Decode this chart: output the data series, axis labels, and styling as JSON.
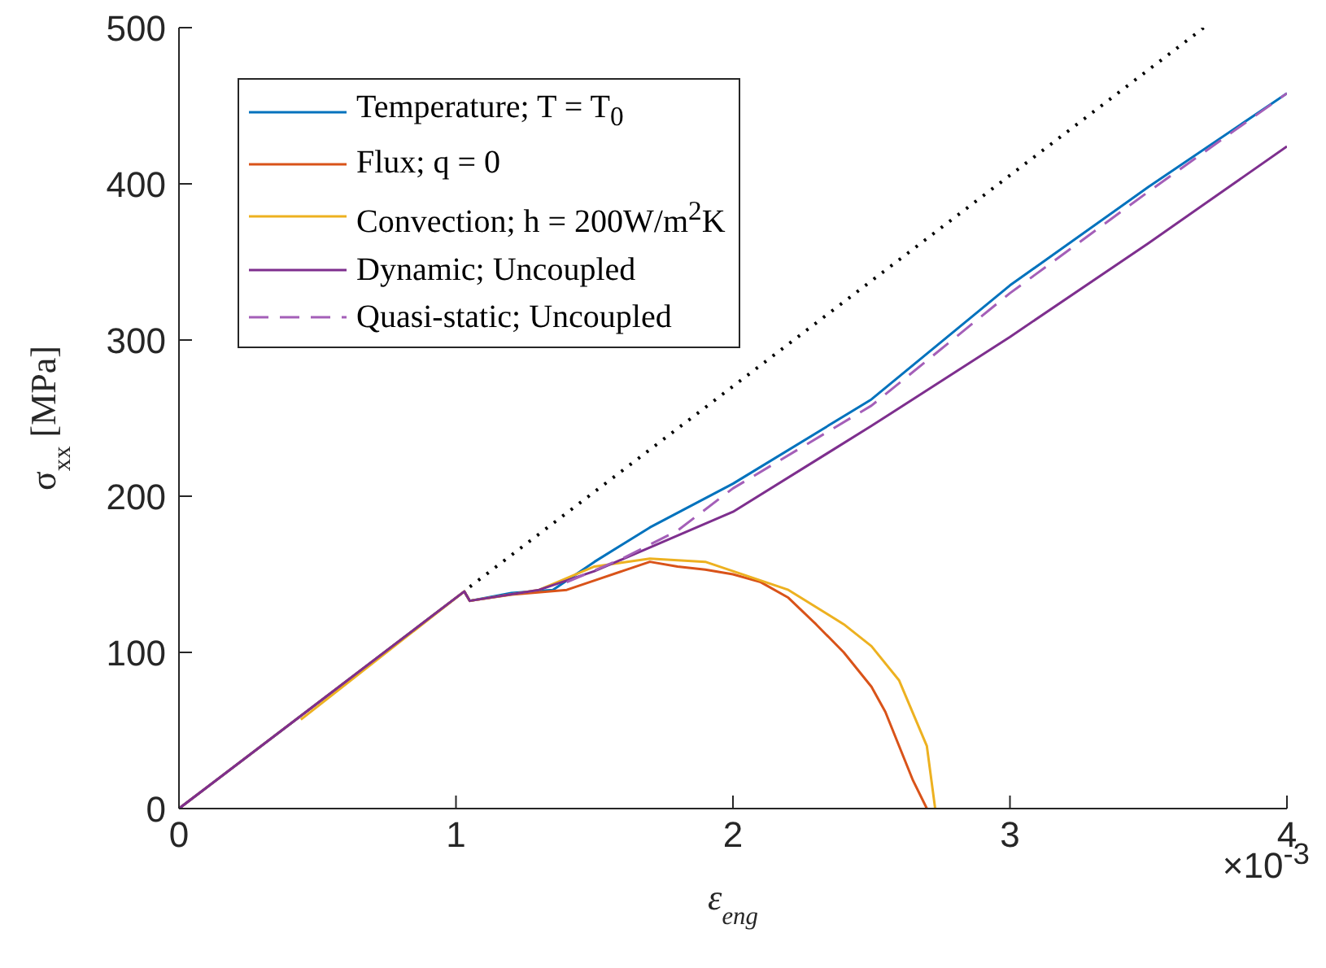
{
  "chart_data": {
    "type": "line",
    "xlabel": "ε$_{eng}$",
    "ylabel": "σ$_{xx}$ [MPa]",
    "annotations": [
      "×10$^{-3}$"
    ],
    "xlim": [
      0,
      4
    ],
    "xticks": [
      0,
      1,
      2,
      3,
      4
    ],
    "ylim": [
      0,
      500
    ],
    "yticks": [
      0,
      100,
      200,
      300,
      400,
      500
    ],
    "grid": false,
    "legend": "top left",
    "marker": "none",
    "series": [
      {
        "name": "Temperature; T = T$_{0}$",
        "color": "#0072bd",
        "line_style": "solid",
        "x": [
          0,
          1.03,
          1.05,
          1.2,
          1.35,
          1.5,
          1.7,
          2.0,
          2.5,
          3.0,
          3.5,
          4.0
        ],
        "values": [
          0,
          139,
          133,
          138,
          140,
          158,
          180,
          208,
          262,
          335,
          398,
          458
        ]
      },
      {
        "name": "Flux; q = 0",
        "color": "#d95319",
        "line_style": "solid",
        "x": [
          0,
          1.03,
          1.05,
          1.2,
          1.4,
          1.5,
          1.6,
          1.7,
          1.8,
          1.9,
          2.0,
          2.1,
          2.2,
          2.3,
          2.4,
          2.5,
          2.55,
          2.6,
          2.65,
          2.7
        ],
        "values": [
          0,
          139,
          133,
          137,
          140,
          146,
          152,
          158,
          155,
          153,
          150,
          145,
          135,
          118,
          100,
          78,
          62,
          40,
          18,
          0
        ]
      },
      {
        "name": "Convection; h = 200W/m$^{2}$K",
        "color": "#edb120",
        "line_style": "solid",
        "x": [
          0.44,
          1.03,
          1.05,
          1.3,
          1.5,
          1.7,
          1.9,
          2.0,
          2.2,
          2.4,
          2.5,
          2.6,
          2.7,
          2.73
        ],
        "values": [
          57,
          139,
          133,
          140,
          155,
          160,
          158,
          152,
          140,
          118,
          104,
          82,
          40,
          0
        ]
      },
      {
        "name": "Dynamic; Uncoupled",
        "color": "#7e2f8e",
        "line_style": "solid",
        "x": [
          0,
          1.03,
          1.05,
          1.3,
          1.5,
          2.0,
          2.5,
          3.0,
          3.5,
          4.0
        ],
        "values": [
          0,
          139,
          133,
          140,
          152,
          190,
          245,
          302,
          362,
          424
        ]
      },
      {
        "name": "Quasi-static; Uncoupled",
        "color": "#a45fb8",
        "line_style": "dashed",
        "x": [
          1.4,
          1.6,
          1.8,
          2.0,
          2.5,
          3.0,
          3.5,
          4.0
        ],
        "values": [
          145,
          160,
          178,
          205,
          258,
          330,
          395,
          458
        ]
      },
      {
        "color": "#000000",
        "line_style": "dotted",
        "x": [
          1.05,
          3.7
        ],
        "values": [
          142,
          500
        ]
      }
    ]
  }
}
